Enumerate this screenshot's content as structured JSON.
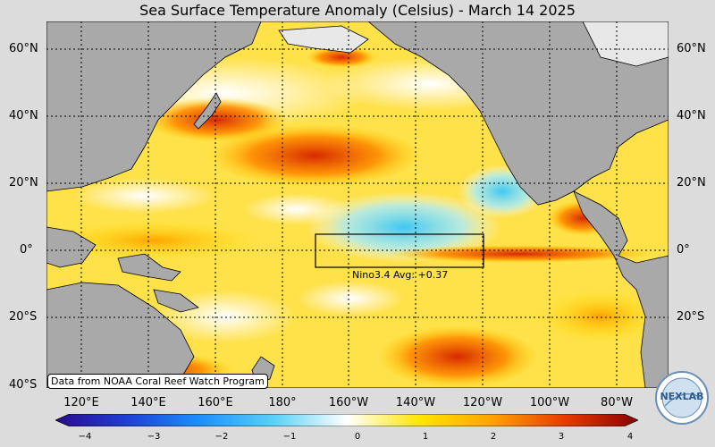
{
  "title": "Sea Surface Temperature Anomaly (Celsius) - March 14 2025",
  "lat_labels": [
    "60°N",
    "40°N",
    "20°N",
    "0°",
    "20°S",
    "40°S"
  ],
  "lon_labels": [
    "120°E",
    "140°E",
    "160°E",
    "180°",
    "160°W",
    "140°W",
    "120°W",
    "100°W",
    "80°W"
  ],
  "source_note": "Data from NOAA Coral Reef Watch Program",
  "nino": {
    "label": "Nino3.4 Avg: +0.37",
    "value": 0.37,
    "lon_range": [
      -170,
      -120
    ],
    "lat_range": [
      -5,
      5
    ]
  },
  "colorbar": {
    "min": -4,
    "max": 4,
    "ticks": [
      "−4",
      "−3",
      "−2",
      "−1",
      "0",
      "1",
      "2",
      "3",
      "4"
    ],
    "colors": [
      "#2a0a8f",
      "#1f3fd8",
      "#1e90ff",
      "#5ad2f5",
      "#ffffff",
      "#ffe600",
      "#ffa200",
      "#e83a00",
      "#8b0000"
    ]
  },
  "logo": {
    "text": "NEXLAB"
  },
  "colors": {
    "land": "#a9a9a9",
    "snow": "#e8e8e8",
    "background": "#dcdcdc"
  }
}
